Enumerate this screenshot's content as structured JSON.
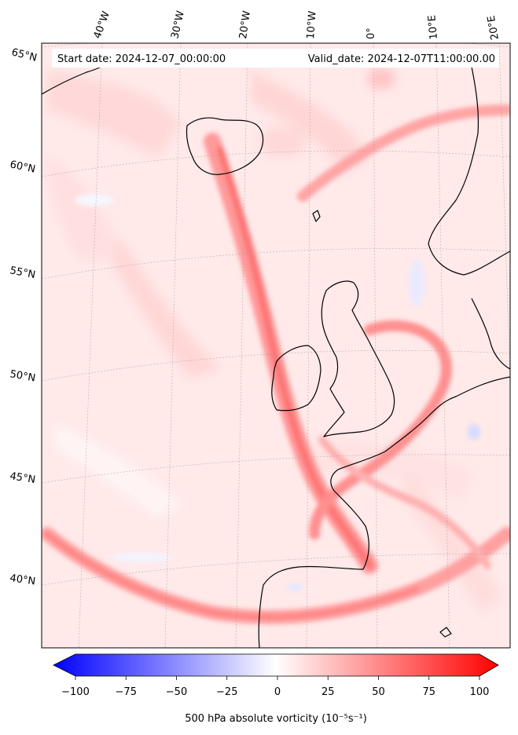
{
  "header": {
    "start_label": "Start date: 2024-12-07_00:00:00",
    "valid_label": "Valid_date: 2024-12-07T11:00:00.00"
  },
  "map": {
    "projection": "conic",
    "longitude_labels": [
      "40°W",
      "30°W",
      "20°W",
      "10°W",
      "0°",
      "10°E",
      "20°E"
    ],
    "latitude_labels": [
      "65°N",
      "60°N",
      "55°N",
      "50°N",
      "45°N",
      "40°N"
    ],
    "gridlines": "dotted",
    "coastline_color": "#000000"
  },
  "colorbar": {
    "label": "500 hPa absolute vorticity (10⁻⁵s⁻¹)",
    "min": -100,
    "max": 100,
    "ticks": [
      "−100",
      "−75",
      "−50",
      "−25",
      "0",
      "25",
      "50",
      "75",
      "100"
    ],
    "colormap": "bwr",
    "low_color": "#0000ff",
    "mid_color": "#ffffff",
    "high_color": "#ff0000",
    "extend": "both"
  }
}
